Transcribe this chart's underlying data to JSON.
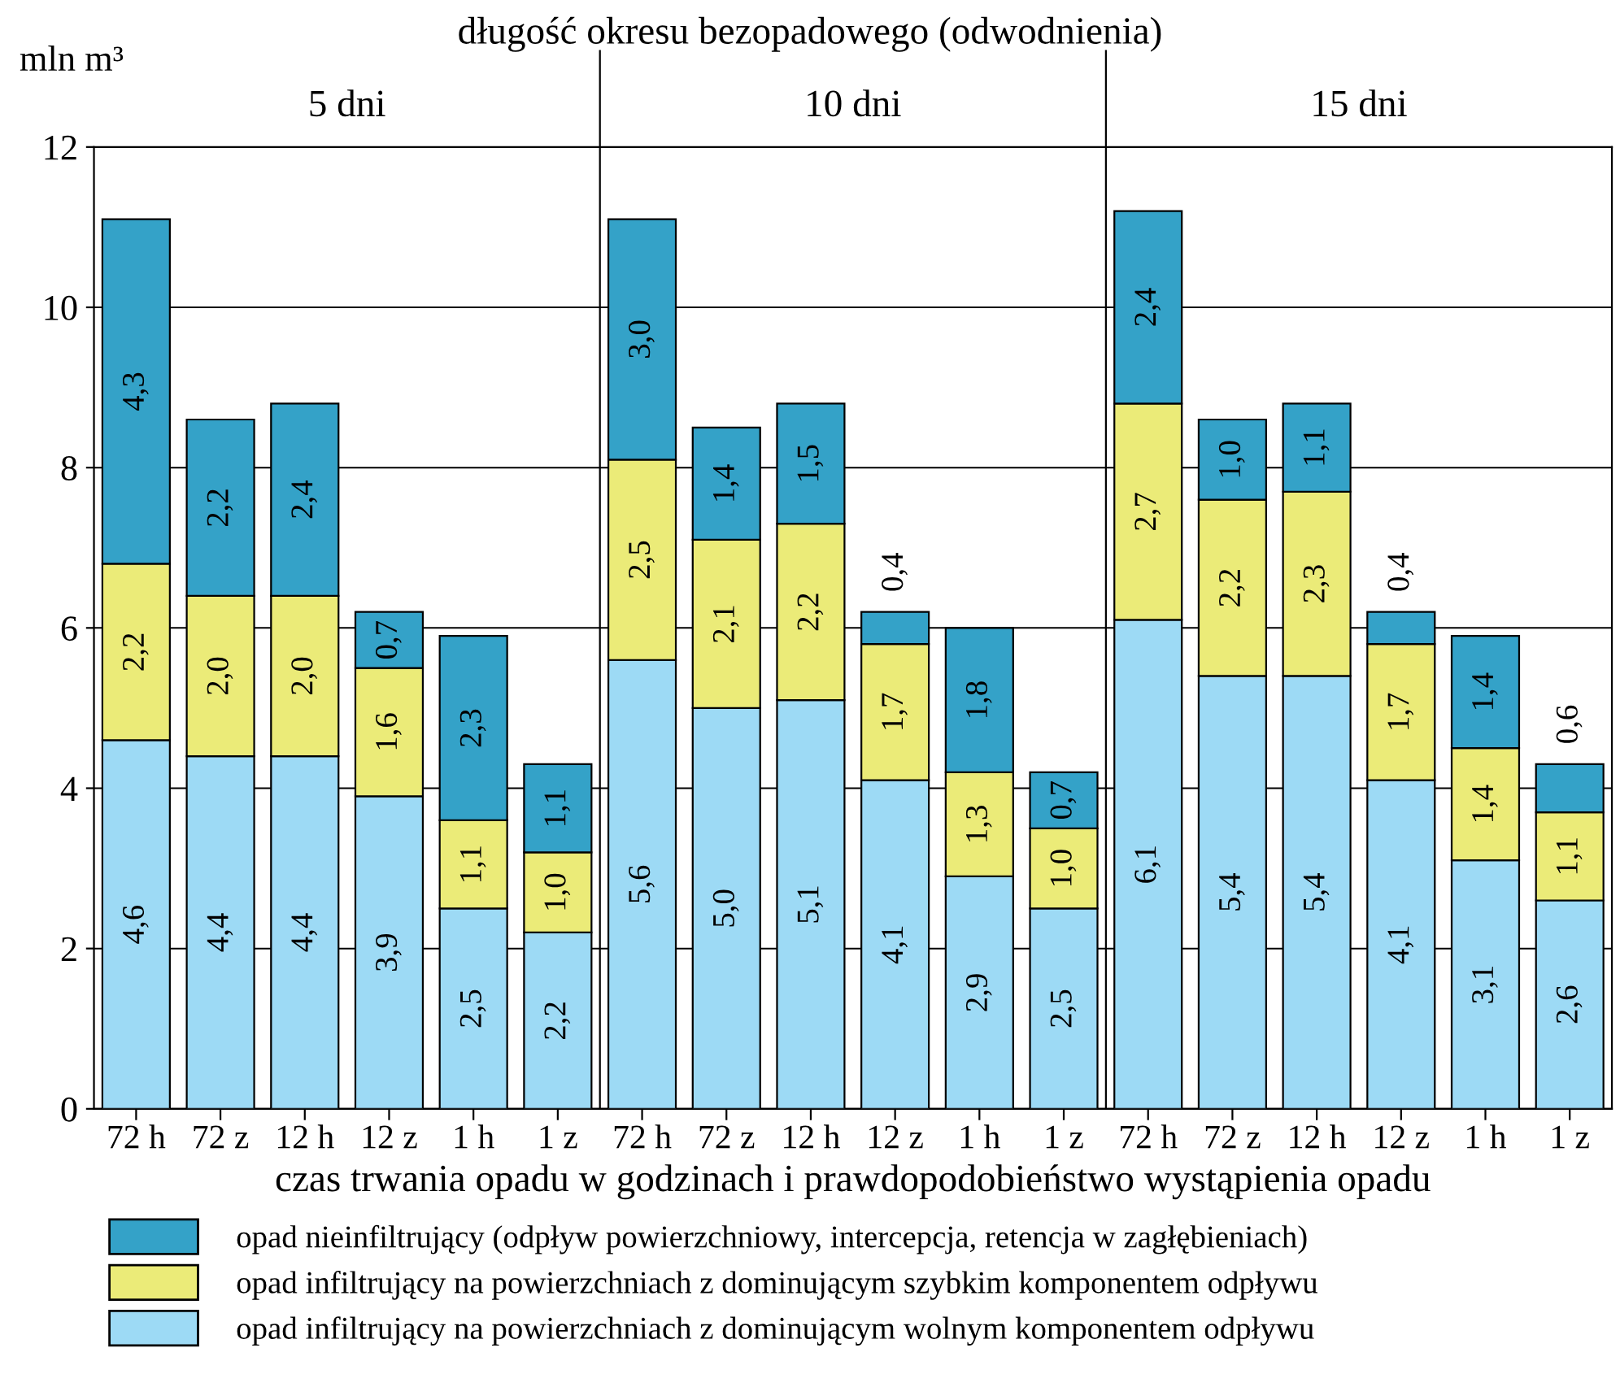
{
  "chart_data": {
    "type": "bar",
    "stacked": true,
    "title": "długość okresu bezopadowego (odwodnienia)",
    "ylabel": "mln m³",
    "xlabel": "czas trwania opadu w godzinach i prawdopodobieństwo wystąpienia opadu",
    "annotations": [
      "5 dni",
      "10 dni",
      "15 dni"
    ],
    "categories": [
      "72 h",
      "72 z",
      "12 h",
      "12 z",
      "1 h",
      "1 z",
      "72 h",
      "72 z",
      "12 h",
      "12 z",
      "1 h",
      "1 z",
      "72 h",
      "72 z",
      "12 h",
      "12 z",
      "1 h",
      "1 z"
    ],
    "series": [
      {
        "name": "opad infiltrujący na powierzchniach z dominującym wolnym komponentem odpływu",
        "color": "#9ddaf5",
        "values": [
          4.6,
          4.4,
          4.4,
          3.9,
          2.5,
          2.2,
          5.6,
          5.0,
          5.1,
          4.1,
          2.9,
          2.5,
          6.1,
          5.4,
          5.4,
          4.1,
          3.1,
          2.6
        ],
        "value_labels": [
          "4,6",
          "4,4",
          "4,4",
          "3,9",
          "2,5",
          "2,2",
          "5,6",
          "5,0",
          "5,1",
          "4,1",
          "2,9",
          "2,5",
          "6,1",
          "5,4",
          "5,4",
          "4,1",
          "3,1",
          "2,6"
        ]
      },
      {
        "name": "opad infiltrujący na powierzchniach z dominującym szybkim komponentem odpływu",
        "color": "#ebeb78",
        "values": [
          2.2,
          2.0,
          2.0,
          1.6,
          1.1,
          1.0,
          2.5,
          2.1,
          2.2,
          1.7,
          1.3,
          1.0,
          2.7,
          2.2,
          2.3,
          1.7,
          1.4,
          1.1
        ],
        "value_labels": [
          "2,2",
          "2,0",
          "2,0",
          "1,6",
          "1,1",
          "1,0",
          "2,5",
          "2,1",
          "2,2",
          "1,7",
          "1,3",
          "1,0",
          "2,7",
          "2,2",
          "2,3",
          "1,7",
          "1,4",
          "1,1"
        ]
      },
      {
        "name": "opad nieinfiltrujący (odpływ powierzchniowy, intercepcja, retencja w zagłębieniach)",
        "color": "#34a2c8",
        "values": [
          4.3,
          2.2,
          2.4,
          0.7,
          2.3,
          1.1,
          3.0,
          1.4,
          1.5,
          0.4,
          1.8,
          0.7,
          2.4,
          1.0,
          1.1,
          0.4,
          1.4,
          0.6
        ],
        "value_labels": [
          "4,3",
          "2,2",
          "2,4",
          "0,7",
          "2,3",
          "1,1",
          "3,0",
          "1,4",
          "1,5",
          "0,4",
          "1,8",
          "0,7",
          "2,4",
          "1,0",
          "1,1",
          "0,4",
          "1,4",
          "0,6"
        ]
      }
    ],
    "ylim": [
      0,
      12
    ],
    "yticks": [
      0,
      2,
      4,
      6,
      8,
      10,
      12
    ],
    "grid": "y",
    "legend": "bottom"
  }
}
